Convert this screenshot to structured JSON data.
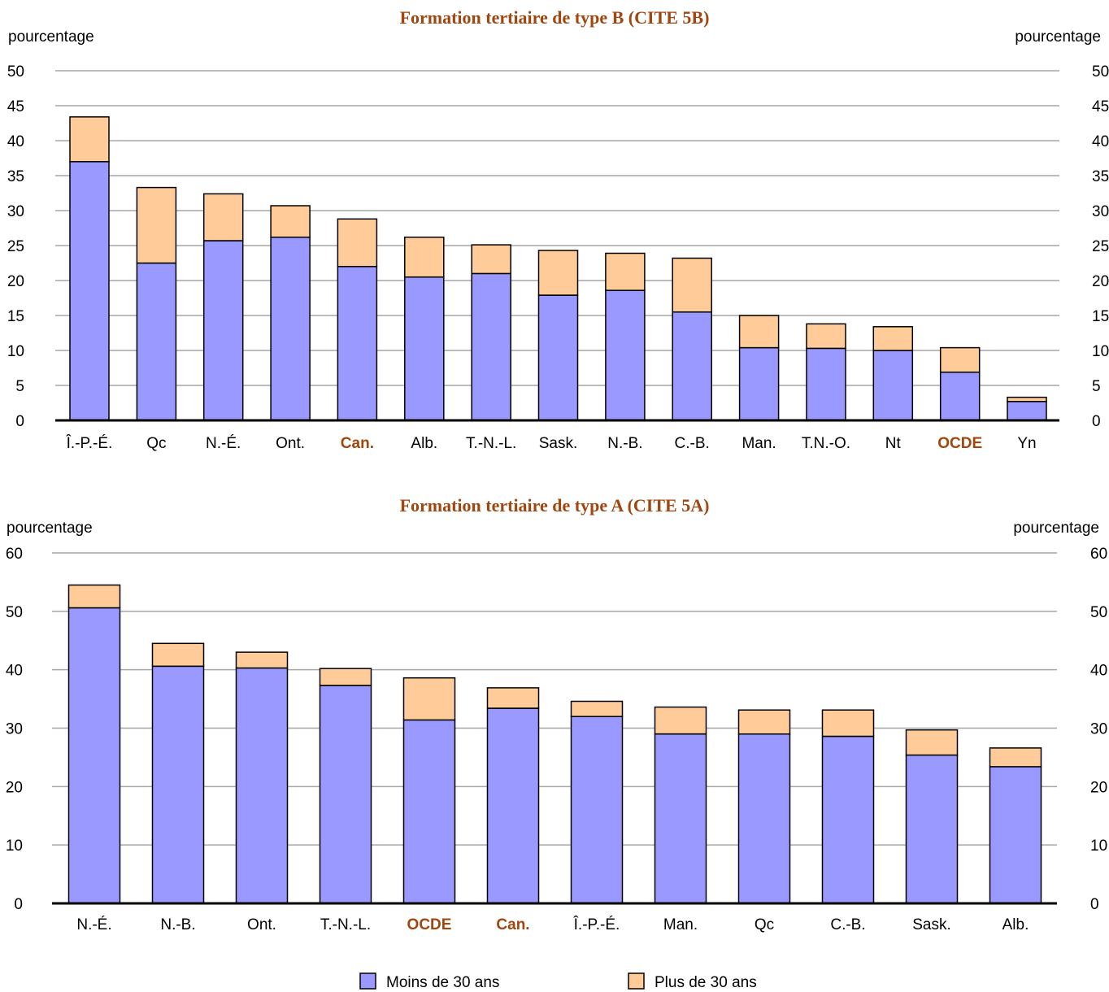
{
  "colors": {
    "series_under_30": "#9999ff",
    "series_over_30": "#ffcc99",
    "title": "#a0460f",
    "highlight_label": "#a0460f",
    "grid": "#a6a6a6"
  },
  "legend": {
    "items": [
      {
        "label": "Moins de 30 ans",
        "color": "#9999ff"
      },
      {
        "label": "Plus de 30 ans",
        "color": "#ffcc99"
      }
    ]
  },
  "chart_data": [
    {
      "type": "bar",
      "stacked": true,
      "title": "Formation tertiaire de type B (CITE 5B)",
      "ylabel_left": "pourcentage",
      "ylabel_right": "pourcentage",
      "ylim": [
        0,
        50
      ],
      "yticks": [
        0,
        5,
        10,
        15,
        20,
        25,
        30,
        35,
        40,
        45,
        50
      ],
      "grid": true,
      "categories": [
        "Î.-P.-É.",
        "Qc",
        "N.-É.",
        "Ont.",
        "Can.",
        "Alb.",
        "T.-N.-L.",
        "Sask.",
        "N.-B.",
        "C.-B.",
        "Man.",
        "T.N.-O.",
        "Nt",
        "OCDE",
        "Yn"
      ],
      "highlighted_categories": [
        "Can.",
        "OCDE"
      ],
      "series": [
        {
          "name": "Moins de 30 ans",
          "values": [
            37.0,
            22.5,
            25.7,
            26.2,
            22.0,
            20.5,
            21.0,
            17.9,
            18.6,
            15.5,
            10.4,
            10.3,
            10.0,
            6.9,
            2.7
          ]
        },
        {
          "name": "Plus de 30 ans",
          "values": [
            6.4,
            10.8,
            6.7,
            4.5,
            6.8,
            5.7,
            4.1,
            6.4,
            5.3,
            7.7,
            4.6,
            3.5,
            3.4,
            3.5,
            0.6
          ]
        }
      ]
    },
    {
      "type": "bar",
      "stacked": true,
      "title": "Formation tertiaire de type A (CITE 5A)",
      "ylabel_left": "pourcentage",
      "ylabel_right": "pourcentage",
      "ylim": [
        0,
        60
      ],
      "yticks": [
        0,
        10,
        20,
        30,
        40,
        50,
        60
      ],
      "grid": true,
      "categories": [
        "N.-É.",
        "N.-B.",
        "Ont.",
        "T.-N.-L.",
        "OCDE",
        "Can.",
        "Î.-P.-É.",
        "Man.",
        "Qc",
        "C.-B.",
        "Sask.",
        "Alb."
      ],
      "highlighted_categories": [
        "OCDE",
        "Can."
      ],
      "series": [
        {
          "name": "Moins de 30 ans",
          "values": [
            50.6,
            40.6,
            40.3,
            37.3,
            31.4,
            33.4,
            32.0,
            29.0,
            29.0,
            28.6,
            25.4,
            23.4
          ]
        },
        {
          "name": "Plus de 30 ans",
          "values": [
            3.9,
            3.9,
            2.7,
            2.9,
            7.2,
            3.5,
            2.6,
            4.6,
            4.1,
            4.5,
            4.3,
            3.2
          ]
        }
      ]
    }
  ]
}
